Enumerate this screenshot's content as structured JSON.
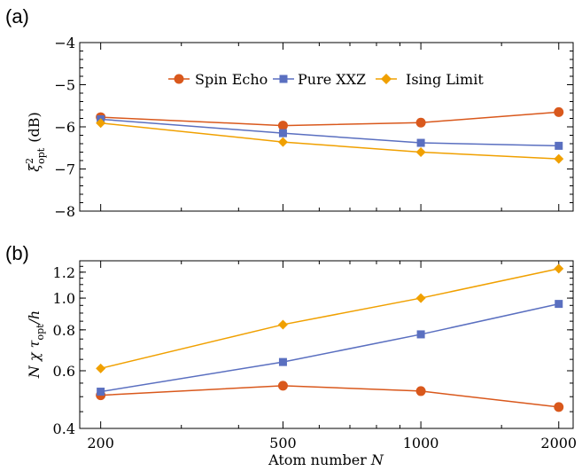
{
  "colors": {
    "spin_echo": "#D9581C",
    "pure_xxz": "#5A6FC0",
    "ising_limit": "#F0A000",
    "axis": "#000000"
  },
  "chart_data": [
    {
      "panel_label": "(a)",
      "type": "line",
      "x": [
        200,
        500,
        1000,
        2000
      ],
      "xscale": "log",
      "xlim": [
        180,
        2150
      ],
      "ylim": [
        -8,
        -4
      ],
      "yticks": [
        "−4",
        "−5",
        "−6",
        "−7",
        "−8"
      ],
      "ytick_values": [
        -4,
        -5,
        -6,
        -7,
        -8
      ],
      "ylabel_parts": {
        "symbol": "ξ",
        "sup": "2",
        "sub": "opt",
        "unit": "(dB)"
      },
      "legend": "top-center",
      "grid": false,
      "series": [
        {
          "name": "Spin Echo",
          "marker": "circle",
          "color_key": "spin_echo",
          "values": [
            -5.77,
            -5.97,
            -5.9,
            -5.65
          ]
        },
        {
          "name": "Pure XXZ",
          "marker": "square",
          "color_key": "pure_xxz",
          "values": [
            -5.82,
            -6.15,
            -6.38,
            -6.45
          ]
        },
        {
          "name": "Ising Limit",
          "marker": "diamond",
          "color_key": "ising_limit",
          "values": [
            -5.91,
            -6.36,
            -6.6,
            -6.76
          ]
        }
      ]
    },
    {
      "panel_label": "(b)",
      "type": "line",
      "x": [
        200,
        500,
        1000,
        2000
      ],
      "xscale": "log",
      "yscale": "log",
      "xlim": [
        180,
        2150
      ],
      "ylim": [
        0.4,
        1.3
      ],
      "xticks": [
        "200",
        "500",
        "1000",
        "2000"
      ],
      "yticks": [
        "0.4",
        "0.6",
        "0.8",
        "1.0",
        "1.2"
      ],
      "ytick_values": [
        0.4,
        0.6,
        0.8,
        1.0,
        1.2
      ],
      "ylabel_parts": {
        "pre": "N χ τ",
        "sub": "opt",
        "post": "/h"
      },
      "xlabel_parts": {
        "text": "Atom number",
        "var": "N"
      },
      "grid": false,
      "series": [
        {
          "name": "Spin Echo",
          "marker": "circle",
          "color_key": "spin_echo",
          "values": [
            0.505,
            0.54,
            0.52,
            0.465
          ]
        },
        {
          "name": "Pure XXZ",
          "marker": "square",
          "color_key": "pure_xxz",
          "values": [
            0.518,
            0.638,
            0.775,
            0.96
          ]
        },
        {
          "name": "Ising Limit",
          "marker": "diamond",
          "color_key": "ising_limit",
          "values": [
            0.61,
            0.83,
            1.0,
            1.23
          ]
        }
      ]
    }
  ]
}
